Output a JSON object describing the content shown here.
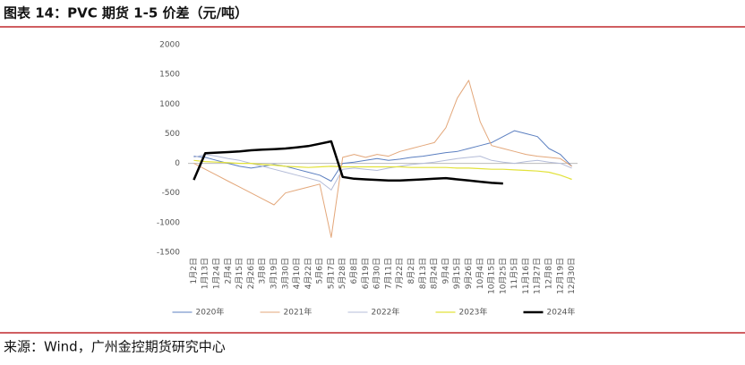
{
  "chart_data": {
    "type": "line",
    "title": "图表 14：PVC 期货 1-5 价差（元/吨）",
    "source": "来源：Wind，广州金控期货研究中心",
    "categories": [
      "1月2日",
      "1月13日",
      "1月24日",
      "2月4日",
      "2月15日",
      "2月26日",
      "3月8日",
      "3月19日",
      "3月30日",
      "4月10日",
      "4月22日",
      "5月6日",
      "5月17日",
      "5月28日",
      "6月8日",
      "6月19日",
      "6月30日",
      "7月11日",
      "7月22日",
      "8月2日",
      "8月13日",
      "8月24日",
      "9月4日",
      "9月15日",
      "9月26日",
      "10月4日",
      "10月15日",
      "10月25日",
      "11月5日",
      "11月16日",
      "11月27日",
      "12月8日",
      "12月19日",
      "12月30日"
    ],
    "series": [
      {
        "name": "2020年",
        "color": "#5b7fc0",
        "width": 1,
        "values": [
          120,
          100,
          50,
          0,
          -50,
          -80,
          -50,
          -20,
          -50,
          -100,
          -150,
          -200,
          -300,
          0,
          20,
          50,
          80,
          50,
          70,
          100,
          120,
          150,
          180,
          200,
          250,
          300,
          350,
          450,
          550,
          500,
          450,
          250,
          150,
          -50
        ]
      },
      {
        "name": "2021年",
        "color": "#e3a77a",
        "width": 1,
        "values": [
          0,
          -100,
          -200,
          -300,
          -400,
          -500,
          -600,
          -700,
          -500,
          -450,
          -400,
          -350,
          -1250,
          100,
          150,
          100,
          150,
          120,
          200,
          250,
          300,
          350,
          600,
          1100,
          1400,
          700,
          300,
          250,
          200,
          150,
          120,
          100,
          80,
          -50
        ]
      },
      {
        "name": "2022年",
        "color": "#b4bcd8",
        "width": 1,
        "values": [
          100,
          150,
          120,
          80,
          50,
          0,
          -50,
          -100,
          -150,
          -200,
          -250,
          -300,
          -450,
          -100,
          -80,
          -100,
          -120,
          -80,
          -50,
          -20,
          0,
          20,
          50,
          80,
          100,
          120,
          50,
          20,
          0,
          30,
          50,
          20,
          0,
          -80
        ]
      },
      {
        "name": "2023年",
        "color": "#e2e23a",
        "width": 1.2,
        "values": [
          50,
          30,
          20,
          10,
          0,
          0,
          -20,
          -30,
          -50,
          -60,
          -70,
          -60,
          -50,
          -60,
          -60,
          -60,
          -60,
          -60,
          -60,
          -70,
          -70,
          -70,
          -70,
          -80,
          -80,
          -90,
          -100,
          -100,
          -110,
          -120,
          -130,
          -150,
          -200,
          -270
        ]
      },
      {
        "name": "2024年",
        "color": "#000000",
        "width": 2.5,
        "values": [
          -280,
          170,
          180,
          190,
          200,
          220,
          230,
          240,
          250,
          270,
          290,
          330,
          370,
          -230,
          -260,
          -270,
          -280,
          -290,
          -290,
          -280,
          -270,
          -260,
          -250,
          -270,
          -290,
          -310,
          -330,
          -340,
          null,
          null,
          null,
          null,
          null,
          null
        ]
      }
    ],
    "ylim": [
      -1500,
      2000
    ],
    "yticks": [
      -1500,
      -1000,
      -500,
      0,
      500,
      1000,
      1500,
      2000
    ],
    "grid": false,
    "legend": "bottom"
  }
}
